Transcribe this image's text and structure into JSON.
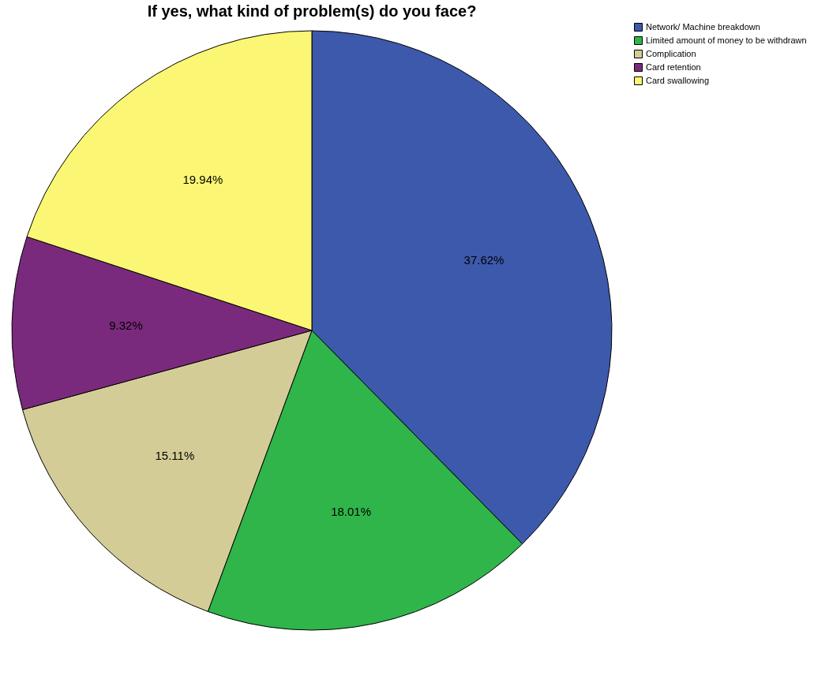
{
  "chart_data": {
    "type": "pie",
    "title": "If yes, what kind of problem(s) do you face?",
    "categories": [
      "Network/ Machine breakdown",
      "Limited amount of money to be withdrawn",
      "Complication",
      "Card retention",
      "Card swallowing"
    ],
    "values": [
      37.62,
      18.01,
      15.11,
      9.32,
      19.94
    ],
    "value_labels": [
      "37.62%",
      "18.01%",
      "15.11%",
      "9.32%",
      "19.94%"
    ],
    "colors": [
      "#3d59ab",
      "#2fb54a",
      "#d4cc97",
      "#7a2a7c",
      "#fbf774"
    ],
    "legend": "top right"
  }
}
